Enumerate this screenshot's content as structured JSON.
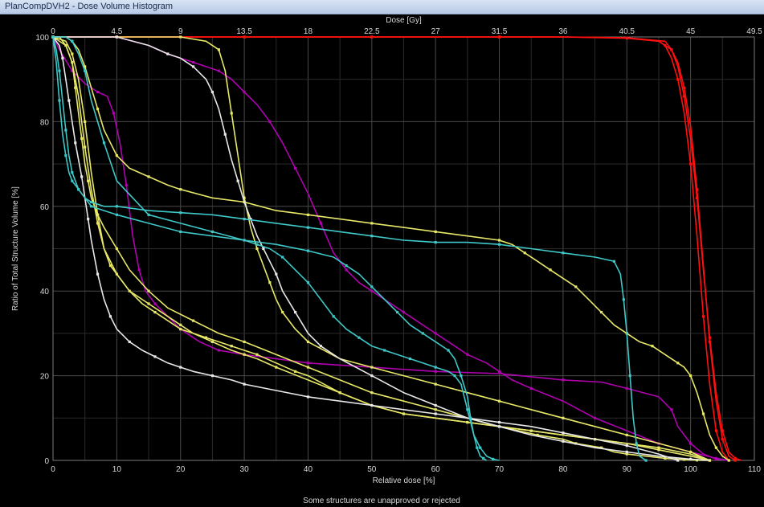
{
  "window": {
    "title": "PlanCompDVH2 - Dose Volume Histogram"
  },
  "footer": {
    "note": "Some structures are unapproved or rejected"
  },
  "colors": {
    "background": "#000000",
    "grid": "#4a4a4a",
    "axis_text": "#d8d8d8"
  },
  "chart_data": {
    "type": "line",
    "title": "",
    "xlabel": "Relative dose [%]",
    "x2label": "Dose [Gy]",
    "ylabel": "Ratio of Total Structure Volume [%]",
    "xlim": [
      0,
      110
    ],
    "ylim": [
      0,
      100
    ],
    "x_ticks": [
      "0",
      "10",
      "20",
      "30",
      "40",
      "50",
      "60",
      "70",
      "80",
      "90",
      "100",
      "110"
    ],
    "x2_ticks": [
      "0",
      "4.5",
      "9",
      "13.5",
      "18",
      "22.5",
      "27",
      "31.5",
      "36",
      "40.5",
      "45",
      "49.5"
    ],
    "y_ticks": [
      "0",
      "20",
      "40",
      "60",
      "80",
      "100"
    ],
    "grid": true,
    "series": [
      {
        "color": "#ff1010",
        "x": [
          0,
          5,
          10,
          20,
          30,
          40,
          50,
          60,
          70,
          80,
          90,
          95,
          97,
          98,
          99,
          100,
          101,
          102,
          103,
          104,
          105,
          106,
          107
        ],
        "y": [
          100,
          100,
          100,
          100,
          100,
          100,
          100,
          100,
          100,
          100,
          99.8,
          99,
          97,
          94,
          88,
          79,
          64,
          46,
          28,
          14,
          5,
          1,
          0
        ]
      },
      {
        "color": "#ff1010",
        "x": [
          0,
          5,
          10,
          20,
          30,
          40,
          50,
          60,
          70,
          80,
          90,
          95,
          96,
          97,
          98,
          99,
          100,
          101,
          102,
          103,
          104,
          105,
          106
        ],
        "y": [
          100,
          100,
          100,
          100,
          100,
          100,
          100,
          100,
          100,
          100,
          99.7,
          99,
          98,
          95,
          90,
          82,
          70,
          53,
          34,
          18,
          7,
          2,
          0
        ]
      },
      {
        "color": "#ff1010",
        "x": [
          0,
          5,
          10,
          20,
          30,
          40,
          50,
          60,
          70,
          80,
          90,
          96,
          97,
          98,
          99,
          100,
          101,
          102,
          103,
          104,
          105,
          106,
          107,
          108
        ],
        "y": [
          100,
          100,
          100,
          100,
          100,
          100,
          100,
          100,
          100,
          100,
          99.8,
          99,
          97,
          93,
          86,
          76,
          62,
          45,
          29,
          16,
          7,
          2,
          0.5,
          0
        ]
      },
      {
        "color": "#b000b0",
        "x": [
          0,
          1,
          3,
          5,
          7,
          8.5,
          9.5,
          10.5,
          11.5,
          12.5,
          13.5,
          14.5,
          16,
          18,
          20,
          23,
          26,
          30,
          40,
          50,
          60,
          70,
          80,
          86,
          90,
          95,
          97,
          98,
          100,
          102,
          104,
          106
        ],
        "y": [
          100,
          97,
          92,
          89,
          87,
          86,
          82,
          75,
          65,
          53,
          45,
          40,
          37,
          34,
          31,
          28,
          26,
          25,
          23,
          22,
          21,
          20.5,
          19,
          18.5,
          17,
          15,
          12,
          8,
          4,
          1.5,
          0.3,
          0
        ]
      },
      {
        "color": "#b000b0",
        "x": [
          0,
          5,
          10,
          15,
          18,
          20,
          22,
          24,
          26,
          28,
          30,
          32,
          34,
          36,
          38,
          40,
          42,
          44,
          46,
          48,
          50,
          52,
          55,
          58,
          60,
          62,
          65,
          68,
          70,
          72,
          75,
          80,
          85,
          90,
          95,
          100,
          104,
          106
        ],
        "y": [
          100,
          100,
          100,
          98,
          96,
          95,
          94,
          93,
          92,
          90,
          87,
          84,
          80,
          75,
          69,
          63,
          56,
          49,
          45,
          42,
          40,
          38,
          35,
          32,
          30,
          28,
          25,
          23,
          21,
          19,
          17,
          14,
          10,
          7,
          4,
          2,
          0.5,
          0
        ]
      },
      {
        "color": "#e8e868",
        "x": [
          0,
          1,
          2,
          3,
          3.5,
          4,
          4.5,
          5,
          5.5,
          6,
          7,
          8,
          10,
          12,
          15,
          18,
          22,
          26,
          30,
          35,
          40,
          45,
          50,
          55,
          60,
          65,
          70,
          73,
          76,
          80,
          82,
          84,
          86,
          88,
          90,
          93,
          96,
          98,
          99,
          100,
          101,
          102,
          103
        ],
        "y": [
          100,
          100,
          98,
          94,
          88,
          82,
          76,
          70,
          66,
          62,
          58,
          55,
          50,
          45,
          40,
          36,
          33,
          30,
          28,
          25,
          22,
          19,
          16,
          14,
          12,
          10,
          8,
          7,
          6,
          5,
          4,
          3.5,
          3,
          2,
          1.5,
          1,
          0.5,
          0.3,
          0.2,
          0.1,
          0.05,
          0,
          0
        ]
      },
      {
        "color": "#e8e868",
        "x": [
          0,
          2,
          3,
          4,
          5,
          6,
          7,
          8,
          10,
          12,
          15,
          18,
          20,
          25,
          30,
          35,
          40,
          45,
          50,
          55,
          60,
          65,
          70,
          72,
          74,
          76,
          78,
          80,
          82,
          84,
          86,
          88,
          90,
          92,
          94,
          96,
          98,
          99,
          100,
          101,
          102,
          103,
          104,
          105,
          106
        ],
        "y": [
          100,
          100,
          99,
          97,
          93,
          88,
          83,
          78,
          72,
          69,
          67,
          65,
          64,
          62,
          61,
          59,
          58,
          57,
          56,
          55,
          54,
          53,
          52,
          51,
          49,
          47,
          45,
          43,
          41,
          38,
          35,
          32,
          30,
          28,
          27,
          25,
          23,
          22,
          20,
          16,
          11,
          6,
          3,
          1,
          0
        ]
      },
      {
        "color": "#e8e868",
        "x": [
          0,
          5,
          10,
          15,
          20,
          24,
          26,
          27,
          28,
          29,
          30,
          31,
          32,
          33,
          34,
          35,
          36,
          38,
          40,
          45,
          50,
          55,
          60,
          65,
          70,
          75,
          80,
          85,
          90,
          95,
          100,
          103
        ],
        "y": [
          100,
          100,
          100,
          100,
          100,
          99,
          97,
          92,
          82,
          72,
          62,
          55,
          50,
          46,
          42,
          38,
          35,
          31,
          28,
          24,
          22,
          20,
          18,
          16,
          14,
          12,
          10,
          8,
          6,
          4,
          2,
          0
        ]
      },
      {
        "color": "#e8e868",
        "x": [
          0,
          2,
          3,
          4,
          5,
          6,
          7,
          8,
          9,
          10,
          12,
          14,
          16,
          18,
          20,
          22,
          24,
          26,
          28,
          30,
          32,
          35,
          38,
          40,
          45,
          50,
          55,
          60,
          65,
          70,
          75,
          80,
          85,
          90,
          95,
          100,
          103
        ],
        "y": [
          100,
          99,
          96,
          90,
          80,
          68,
          58,
          50,
          46,
          44,
          40,
          37,
          35,
          33,
          31,
          30,
          29,
          28,
          27,
          26,
          25,
          23,
          21,
          20,
          16,
          13,
          11,
          10,
          9,
          8,
          7,
          6,
          5,
          4,
          3,
          1.5,
          0
        ]
      },
      {
        "color": "#e8e868",
        "x": [
          0,
          2,
          3,
          4,
          5,
          6,
          7,
          8,
          10,
          12,
          15,
          18,
          20,
          22,
          25,
          28,
          30,
          32,
          35,
          40,
          45,
          50,
          55,
          60,
          65,
          70,
          75,
          80,
          85,
          90,
          95,
          100,
          103
        ],
        "y": [
          100,
          98,
          94,
          86,
          74,
          64,
          56,
          50,
          44,
          40,
          37,
          34,
          32,
          30,
          28,
          26,
          25,
          24,
          22,
          19,
          16,
          13,
          11,
          10,
          9,
          8,
          7,
          6,
          5,
          4,
          2.5,
          1,
          0
        ]
      },
      {
        "color": "#e8e8e8",
        "x": [
          0,
          5,
          10,
          15,
          18,
          20,
          22,
          24,
          25,
          26,
          27,
          28,
          29,
          30,
          31,
          32,
          33,
          34,
          35,
          36,
          38,
          40,
          42,
          45,
          50,
          55,
          60,
          65,
          70,
          75,
          80,
          85,
          90,
          95,
          100,
          103
        ],
        "y": [
          100,
          100,
          100,
          98,
          96,
          95,
          93,
          90,
          87,
          83,
          77,
          71,
          66,
          61,
          57,
          53,
          50,
          47,
          44,
          40,
          35,
          30,
          27,
          24,
          20,
          16,
          13,
          10,
          8,
          6,
          4.5,
          3,
          2,
          1,
          0.3,
          0
        ]
      },
      {
        "color": "#e8e8e8",
        "x": [
          0,
          1,
          1.5,
          2,
          2.5,
          3,
          3.5,
          4,
          4.5,
          5,
          5.5,
          6,
          7,
          8,
          9,
          10,
          12,
          14,
          16,
          18,
          20,
          22,
          25,
          28,
          30,
          35,
          40,
          45,
          50,
          55,
          60,
          65,
          70,
          75,
          80,
          85,
          90,
          95,
          98
        ],
        "y": [
          100,
          98,
          95,
          90,
          85,
          80,
          75,
          71,
          67,
          62,
          57,
          52,
          44,
          38,
          34,
          31,
          28,
          26,
          24.5,
          23,
          22,
          21,
          20,
          19,
          18,
          16.5,
          15,
          14,
          13,
          12,
          11,
          10,
          9,
          8,
          6.5,
          5,
          3.5,
          1.5,
          0
        ]
      },
      {
        "color": "#3ec8c8",
        "x": [
          0,
          0.5,
          1,
          1.5,
          2,
          2.5,
          3,
          3.5,
          4,
          5,
          6,
          8,
          10,
          15,
          20,
          25,
          30,
          35,
          40,
          45,
          50,
          55,
          60,
          65,
          70,
          75,
          80,
          85,
          88,
          89,
          89.5,
          90,
          90.5,
          91,
          91.5,
          92,
          93
        ],
        "y": [
          100,
          97,
          92,
          85,
          78,
          72,
          68,
          66,
          64,
          62,
          61,
          60,
          60,
          59,
          58.5,
          58,
          57,
          56,
          55,
          54,
          53,
          52,
          51.5,
          51.5,
          51,
          50,
          49,
          48,
          47,
          44,
          38,
          30,
          20,
          10,
          4,
          1,
          0
        ]
      },
      {
        "color": "#3ec8c8",
        "x": [
          0,
          0.5,
          1,
          1.5,
          2,
          2.5,
          3,
          3.5,
          4,
          5,
          6,
          8,
          10,
          15,
          20,
          25,
          30,
          35,
          40,
          44,
          46,
          48,
          50,
          52,
          54,
          56,
          58,
          60,
          62,
          63,
          64,
          65,
          65.5,
          66,
          66.5,
          67,
          67.5,
          68
        ],
        "y": [
          100,
          94,
          85,
          77,
          72,
          68,
          66,
          65,
          64,
          62,
          60,
          59,
          58,
          56,
          54,
          53,
          52,
          51,
          49.5,
          48,
          46,
          44,
          41,
          38,
          35,
          32,
          30,
          28,
          26,
          24,
          20,
          15,
          10,
          6,
          3,
          1,
          0.5,
          0
        ]
      },
      {
        "color": "#3ec8c8",
        "x": [
          0,
          2,
          3,
          4,
          5,
          6,
          8,
          10,
          15,
          20,
          25,
          30,
          32,
          34,
          36,
          38,
          40,
          42,
          44,
          46,
          48,
          50,
          52,
          54,
          56,
          58,
          60,
          62,
          63,
          64,
          65,
          66,
          67,
          68,
          69,
          70
        ],
        "y": [
          100,
          100,
          99,
          96,
          92,
          85,
          75,
          66,
          58,
          56,
          54,
          52,
          51,
          50,
          48,
          45,
          42,
          38,
          34,
          31,
          29,
          27,
          26,
          25,
          24,
          23,
          22,
          21,
          20,
          18,
          12,
          6,
          3,
          1,
          0.3,
          0
        ]
      }
    ]
  }
}
